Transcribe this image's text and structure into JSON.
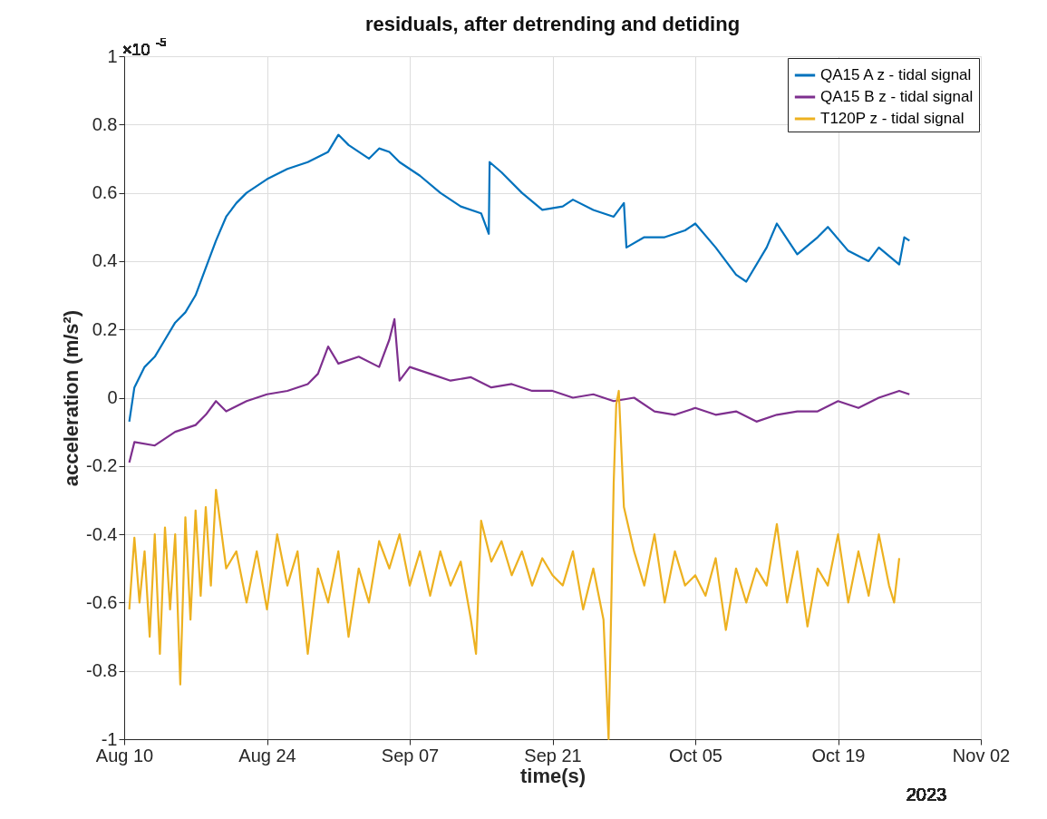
{
  "chart_data": {
    "type": "line",
    "title": "residuals, after detrending and detiding",
    "xlabel": "time(s)",
    "ylabel": "acceleration (m/s²)",
    "annotations": [
      "×10$^{-5}$",
      "2023"
    ],
    "xlim": [
      "2023-08-10",
      "2023-11-02"
    ],
    "xticks": [
      {
        "value": "2023-08-10",
        "label": "Aug 10"
      },
      {
        "value": "2023-08-24",
        "label": "Aug 24"
      },
      {
        "value": "2023-09-07",
        "label": "Sep 07"
      },
      {
        "value": "2023-09-21",
        "label": "Sep 21"
      },
      {
        "value": "2023-10-05",
        "label": "Oct 05"
      },
      {
        "value": "2023-10-19",
        "label": "Oct 19"
      },
      {
        "value": "2023-11-02",
        "label": "Nov 02"
      }
    ],
    "ylim": [
      -1,
      1
    ],
    "yticks": [
      -1,
      -0.8,
      -0.6,
      -0.4,
      -0.2,
      0,
      0.2,
      0.4,
      0.6,
      0.8,
      1
    ],
    "grid": true,
    "legend": "top right",
    "marker": "none",
    "line_style": "solid",
    "series": [
      {
        "name": "QA15 A z - tidal signal",
        "color": "#0072bd",
        "x": [
          "2023-08-10T12:00",
          "2023-08-11",
          "2023-08-12",
          "2023-08-13",
          "2023-08-14",
          "2023-08-15",
          "2023-08-16",
          "2023-08-17",
          "2023-08-18",
          "2023-08-19",
          "2023-08-20",
          "2023-08-21",
          "2023-08-22",
          "2023-08-24",
          "2023-08-26",
          "2023-08-28",
          "2023-08-30",
          "2023-08-31",
          "2023-09-01",
          "2023-09-03",
          "2023-09-04",
          "2023-09-05",
          "2023-09-06",
          "2023-09-08",
          "2023-09-10",
          "2023-09-12",
          "2023-09-14",
          "2023-09-14T18:00",
          "2023-09-14T20:00",
          "2023-09-16",
          "2023-09-18",
          "2023-09-20",
          "2023-09-22",
          "2023-09-23",
          "2023-09-25",
          "2023-09-27",
          "2023-09-28",
          "2023-09-28T06:00",
          "2023-09-30",
          "2023-10-02",
          "2023-10-04",
          "2023-10-05",
          "2023-10-07",
          "2023-10-09",
          "2023-10-10",
          "2023-10-12",
          "2023-10-13",
          "2023-10-15",
          "2023-10-17",
          "2023-10-18",
          "2023-10-20",
          "2023-10-22",
          "2023-10-23",
          "2023-10-25",
          "2023-10-25T12:00",
          "2023-10-26"
        ],
        "values": [
          -0.07,
          0.03,
          0.09,
          0.12,
          0.17,
          0.22,
          0.25,
          0.3,
          0.38,
          0.46,
          0.53,
          0.57,
          0.6,
          0.64,
          0.67,
          0.69,
          0.72,
          0.77,
          0.74,
          0.7,
          0.73,
          0.72,
          0.69,
          0.65,
          0.6,
          0.56,
          0.54,
          0.48,
          0.69,
          0.66,
          0.6,
          0.55,
          0.56,
          0.58,
          0.55,
          0.53,
          0.57,
          0.44,
          0.47,
          0.47,
          0.49,
          0.51,
          0.44,
          0.36,
          0.34,
          0.44,
          0.51,
          0.42,
          0.47,
          0.5,
          0.43,
          0.4,
          0.44,
          0.39,
          0.47,
          0.46
        ]
      },
      {
        "name": "QA15 B z - tidal signal",
        "color": "#7e2f8e",
        "x": [
          "2023-08-10T12:00",
          "2023-08-11",
          "2023-08-13",
          "2023-08-15",
          "2023-08-17",
          "2023-08-18",
          "2023-08-19",
          "2023-08-20",
          "2023-08-22",
          "2023-08-24",
          "2023-08-26",
          "2023-08-28",
          "2023-08-29",
          "2023-08-30",
          "2023-08-31",
          "2023-09-02",
          "2023-09-04",
          "2023-09-05",
          "2023-09-05T12:00",
          "2023-09-06",
          "2023-09-07",
          "2023-09-09",
          "2023-09-11",
          "2023-09-13",
          "2023-09-15",
          "2023-09-17",
          "2023-09-19",
          "2023-09-21",
          "2023-09-23",
          "2023-09-25",
          "2023-09-27",
          "2023-09-29",
          "2023-10-01",
          "2023-10-03",
          "2023-10-05",
          "2023-10-07",
          "2023-10-09",
          "2023-10-11",
          "2023-10-13",
          "2023-10-15",
          "2023-10-17",
          "2023-10-19",
          "2023-10-21",
          "2023-10-23",
          "2023-10-25",
          "2023-10-26"
        ],
        "values": [
          -0.19,
          -0.13,
          -0.14,
          -0.1,
          -0.08,
          -0.05,
          -0.01,
          -0.04,
          -0.01,
          0.01,
          0.02,
          0.04,
          0.07,
          0.15,
          0.1,
          0.12,
          0.09,
          0.17,
          0.23,
          0.05,
          0.09,
          0.07,
          0.05,
          0.06,
          0.03,
          0.04,
          0.02,
          0.02,
          0.0,
          0.01,
          -0.01,
          0.0,
          -0.04,
          -0.05,
          -0.03,
          -0.05,
          -0.04,
          -0.07,
          -0.05,
          -0.04,
          -0.04,
          -0.01,
          -0.03,
          0.0,
          0.02,
          0.01
        ]
      },
      {
        "name": "T120P z - tidal signal",
        "color": "#edb120",
        "x": [
          "2023-08-10T12:00",
          "2023-08-11",
          "2023-08-11T12:00",
          "2023-08-12",
          "2023-08-12T12:00",
          "2023-08-13",
          "2023-08-13T12:00",
          "2023-08-14",
          "2023-08-14T12:00",
          "2023-08-15",
          "2023-08-15T12:00",
          "2023-08-16",
          "2023-08-16T12:00",
          "2023-08-17",
          "2023-08-17T12:00",
          "2023-08-18",
          "2023-08-18T12:00",
          "2023-08-19",
          "2023-08-20",
          "2023-08-21",
          "2023-08-22",
          "2023-08-23",
          "2023-08-24",
          "2023-08-25",
          "2023-08-26",
          "2023-08-27",
          "2023-08-28",
          "2023-08-29",
          "2023-08-30",
          "2023-08-31",
          "2023-09-01",
          "2023-09-02",
          "2023-09-03",
          "2023-09-04",
          "2023-09-05",
          "2023-09-06",
          "2023-09-07",
          "2023-09-08",
          "2023-09-09",
          "2023-09-10",
          "2023-09-11",
          "2023-09-12",
          "2023-09-13",
          "2023-09-13T12:00",
          "2023-09-14",
          "2023-09-15",
          "2023-09-16",
          "2023-09-17",
          "2023-09-18",
          "2023-09-19",
          "2023-09-20",
          "2023-09-21",
          "2023-09-22",
          "2023-09-23",
          "2023-09-24",
          "2023-09-25",
          "2023-09-26",
          "2023-09-26T12:00",
          "2023-09-27",
          "2023-09-27T06:00",
          "2023-09-27T12:00",
          "2023-09-28",
          "2023-09-29",
          "2023-09-30",
          "2023-10-01",
          "2023-10-02",
          "2023-10-03",
          "2023-10-04",
          "2023-10-05",
          "2023-10-06",
          "2023-10-07",
          "2023-10-08",
          "2023-10-09",
          "2023-10-10",
          "2023-10-11",
          "2023-10-12",
          "2023-10-13",
          "2023-10-14",
          "2023-10-15",
          "2023-10-16",
          "2023-10-17",
          "2023-10-18",
          "2023-10-19",
          "2023-10-20",
          "2023-10-21",
          "2023-10-22",
          "2023-10-23",
          "2023-10-24",
          "2023-10-24T12:00",
          "2023-10-25"
        ],
        "values": [
          -0.62,
          -0.41,
          -0.6,
          -0.45,
          -0.7,
          -0.4,
          -0.75,
          -0.38,
          -0.62,
          -0.4,
          -0.84,
          -0.35,
          -0.65,
          -0.33,
          -0.58,
          -0.32,
          -0.55,
          -0.27,
          -0.5,
          -0.45,
          -0.6,
          -0.45,
          -0.62,
          -0.4,
          -0.55,
          -0.45,
          -0.75,
          -0.5,
          -0.6,
          -0.45,
          -0.7,
          -0.5,
          -0.6,
          -0.42,
          -0.5,
          -0.4,
          -0.55,
          -0.45,
          -0.58,
          -0.45,
          -0.55,
          -0.48,
          -0.65,
          -0.75,
          -0.36,
          -0.48,
          -0.42,
          -0.52,
          -0.45,
          -0.55,
          -0.47,
          -0.52,
          -0.55,
          -0.45,
          -0.62,
          -0.5,
          -0.65,
          -1.0,
          -0.25,
          -0.02,
          0.02,
          -0.32,
          -0.45,
          -0.55,
          -0.4,
          -0.6,
          -0.45,
          -0.55,
          -0.52,
          -0.58,
          -0.47,
          -0.68,
          -0.5,
          -0.6,
          -0.5,
          -0.55,
          -0.37,
          -0.6,
          -0.45,
          -0.67,
          -0.5,
          -0.55,
          -0.4,
          -0.6,
          -0.45,
          -0.58,
          -0.4,
          -0.55,
          -0.6,
          -0.47
        ]
      }
    ]
  }
}
